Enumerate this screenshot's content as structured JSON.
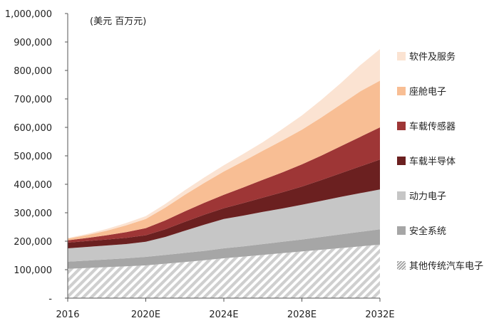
{
  "chart_data": {
    "type": "area",
    "stacked": true,
    "title": "",
    "unit_label": "(美元 百万元)",
    "xlabel": "",
    "ylabel": "",
    "ylim": [
      0,
      1000000
    ],
    "y_ticks": [
      "-",
      "100,000",
      "200,000",
      "300,000",
      "400,000",
      "500,000",
      "600,000",
      "700,000",
      "800,000",
      "900,000",
      "1,000,000"
    ],
    "y_tick_values": [
      0,
      100000,
      200000,
      300000,
      400000,
      500000,
      600000,
      700000,
      800000,
      900000,
      1000000
    ],
    "x": [
      2016,
      2017,
      2018,
      2019,
      2020,
      2021,
      2022,
      2023,
      2024,
      2025,
      2026,
      2027,
      2028,
      2029,
      2030,
      2031,
      2032
    ],
    "x_tick_labels": [
      {
        "x": 2016,
        "label": "2016"
      },
      {
        "x": 2020,
        "label": "2020E"
      },
      {
        "x": 2024,
        "label": "2024E"
      },
      {
        "x": 2028,
        "label": "2028E"
      },
      {
        "x": 2032,
        "label": "2032E"
      }
    ],
    "legend_position": "right",
    "series": [
      {
        "name": "其他传统汽车电子",
        "color": "#d2d2d2",
        "pattern": "hatch",
        "values": [
          103000,
          106000,
          109000,
          112000,
          115000,
          121000,
          127000,
          133000,
          140000,
          146000,
          152000,
          158000,
          164000,
          170000,
          176000,
          182000,
          188000
        ]
      },
      {
        "name": "安全系统",
        "color": "#a6a6a6",
        "values": [
          25000,
          26000,
          27000,
          28000,
          30000,
          31000,
          32000,
          33000,
          35000,
          36000,
          38000,
          40000,
          42000,
          45000,
          48000,
          51000,
          54000
        ]
      },
      {
        "name": "动力电子",
        "color": "#c6c6c6",
        "values": [
          47000,
          48000,
          49000,
          50000,
          53000,
          63000,
          78000,
          92000,
          103000,
          108000,
          113000,
          117000,
          122000,
          127000,
          132000,
          136000,
          140000
        ]
      },
      {
        "name": "车载半导体",
        "color": "#6b2020",
        "values": [
          20000,
          20500,
          21000,
          22000,
          23000,
          27000,
          31000,
          35000,
          38000,
          44000,
          50000,
          57000,
          64000,
          73000,
          83000,
          94000,
          105000
        ]
      },
      {
        "name": "车载传感器",
        "color": "#9e3636",
        "values": [
          8000,
          11000,
          15000,
          20000,
          25000,
          31000,
          37000,
          42000,
          47000,
          55000,
          63000,
          70000,
          78000,
          86000,
          95000,
          104000,
          113000
        ]
      },
      {
        "name": "座舱电子",
        "color": "#f8be94",
        "values": [
          6000,
          10000,
          16000,
          24000,
          32000,
          45000,
          58000,
          70000,
          82000,
          92000,
          102000,
          112000,
          122000,
          134000,
          147000,
          160000,
          164000
        ]
      },
      {
        "name": "软件及服务",
        "color": "#fbe3d2",
        "values": [
          2000,
          4000,
          6000,
          8000,
          10000,
          13000,
          16000,
          19000,
          22000,
          26000,
          30000,
          40000,
          50000,
          62000,
          75000,
          92000,
          111000
        ]
      }
    ]
  }
}
